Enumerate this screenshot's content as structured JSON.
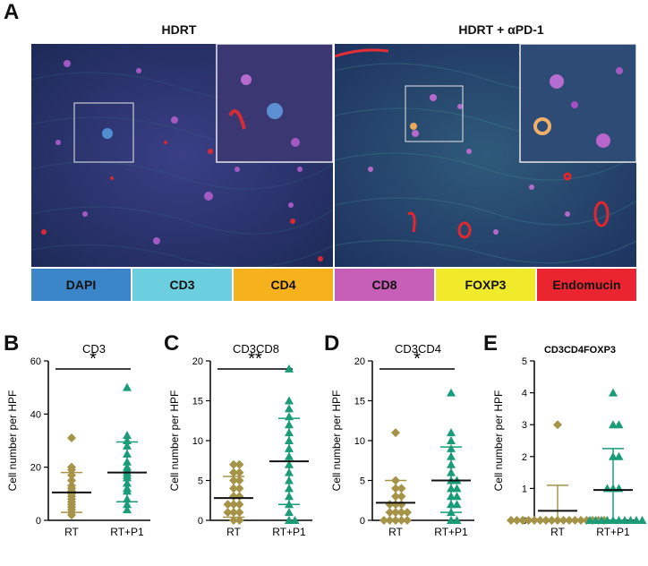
{
  "panel_a": {
    "letter": "A",
    "left_title": "HDRT",
    "right_title": "HDRT + αPD-1",
    "legend": [
      {
        "label": "DAPI",
        "color": "#3a86c8"
      },
      {
        "label": "CD3",
        "color": "#6ccfe0"
      },
      {
        "label": "CD4",
        "color": "#f6b21c"
      },
      {
        "label": "CD8",
        "color": "#c75fb8"
      },
      {
        "label": "FOXP3",
        "color": "#f0ea2b"
      },
      {
        "label": "Endomucin",
        "color": "#ea2530"
      }
    ]
  },
  "chart_data": [
    {
      "id": "B",
      "letter": "B",
      "type": "scatter",
      "title": "CD3",
      "ylabel": "Cell number per HPF",
      "xlabel": "",
      "categories": [
        "RT",
        "RT+P1"
      ],
      "ylim": [
        0,
        60
      ],
      "yticks": [
        0,
        20,
        40,
        60
      ],
      "significance": "*",
      "series": [
        {
          "category": "RT",
          "marker": "diamond",
          "color": "#a59348",
          "mean": 10.5,
          "sd_low": 3,
          "sd_high": 18,
          "values": [
            2,
            3,
            4,
            5,
            6,
            7,
            8,
            9,
            10,
            11,
            12,
            13,
            15,
            17,
            19,
            20,
            31
          ]
        },
        {
          "category": "RT+P1",
          "marker": "triangle",
          "color": "#1a9c78",
          "mean": 18,
          "sd_low": 7,
          "sd_high": 29.5,
          "values": [
            4,
            6,
            8,
            11,
            12,
            14,
            16,
            17,
            18,
            19,
            20,
            22,
            25,
            28,
            30,
            32,
            50
          ]
        }
      ]
    },
    {
      "id": "C",
      "letter": "C",
      "type": "scatter",
      "title": "CD3CD8",
      "ylabel": "Cell number per HPF",
      "xlabel": "",
      "categories": [
        "RT",
        "RT+P1"
      ],
      "ylim": [
        0,
        20
      ],
      "yticks": [
        0,
        5,
        10,
        15,
        20
      ],
      "significance": "**",
      "series": [
        {
          "category": "RT",
          "marker": "diamond",
          "color": "#a59348",
          "mean": 2.8,
          "sd_low": 0.4,
          "sd_high": 5.5,
          "values": [
            0,
            0,
            1,
            1,
            1,
            2,
            2,
            2,
            3,
            3,
            4,
            4,
            5,
            5,
            6,
            6,
            7,
            7
          ]
        },
        {
          "category": "RT+P1",
          "marker": "triangle",
          "color": "#1a9c78",
          "mean": 7.4,
          "sd_low": 2,
          "sd_high": 12.8,
          "values": [
            0,
            0,
            1,
            2,
            3,
            4,
            5,
            6,
            7,
            8,
            9,
            10,
            11,
            12,
            13,
            14,
            15,
            19
          ]
        }
      ]
    },
    {
      "id": "D",
      "letter": "D",
      "type": "scatter",
      "title": "CD3CD4",
      "ylabel": "Cell number per HPF",
      "xlabel": "",
      "categories": [
        "RT",
        "RT+P1"
      ],
      "ylim": [
        0,
        20
      ],
      "yticks": [
        0,
        5,
        10,
        15,
        20
      ],
      "significance": "*",
      "series": [
        {
          "category": "RT",
          "marker": "diamond",
          "color": "#a59348",
          "mean": 2.2,
          "sd_low": 0,
          "sd_high": 5,
          "values": [
            0,
            0,
            0,
            0,
            0,
            1,
            1,
            1,
            1,
            2,
            2,
            2,
            3,
            3,
            4,
            4,
            5,
            11
          ]
        },
        {
          "category": "RT+P1",
          "marker": "triangle",
          "color": "#1a9c78",
          "mean": 5,
          "sd_low": 1,
          "sd_high": 9.2,
          "values": [
            0,
            0,
            1,
            2,
            2,
            3,
            3,
            4,
            4,
            5,
            5,
            6,
            7,
            8,
            9,
            10,
            11,
            16
          ]
        }
      ]
    },
    {
      "id": "E",
      "letter": "E",
      "type": "scatter",
      "title": "CD3CD4FOXP3",
      "ylabel": "Cell number per HPF",
      "xlabel": "",
      "categories": [
        "RT",
        "RT+P1"
      ],
      "ylim": [
        0,
        5
      ],
      "yticks": [
        0,
        1,
        2,
        3,
        4,
        5
      ],
      "significance": "",
      "series": [
        {
          "category": "RT",
          "marker": "diamond",
          "color": "#a59348",
          "mean": 0.3,
          "sd_low": 0,
          "sd_high": 1.1,
          "values": [
            0,
            0,
            0,
            0,
            0,
            0,
            0,
            0,
            0,
            0,
            0,
            0,
            0,
            0,
            0,
            0,
            0,
            3
          ]
        },
        {
          "category": "RT+P1",
          "marker": "triangle",
          "color": "#1a9c78",
          "mean": 0.95,
          "sd_low": 0,
          "sd_high": 2.25,
          "values": [
            0,
            0,
            0,
            0,
            0,
            0,
            0,
            0,
            0,
            0,
            1,
            1,
            1,
            2,
            2,
            3,
            3,
            4
          ]
        }
      ]
    }
  ]
}
